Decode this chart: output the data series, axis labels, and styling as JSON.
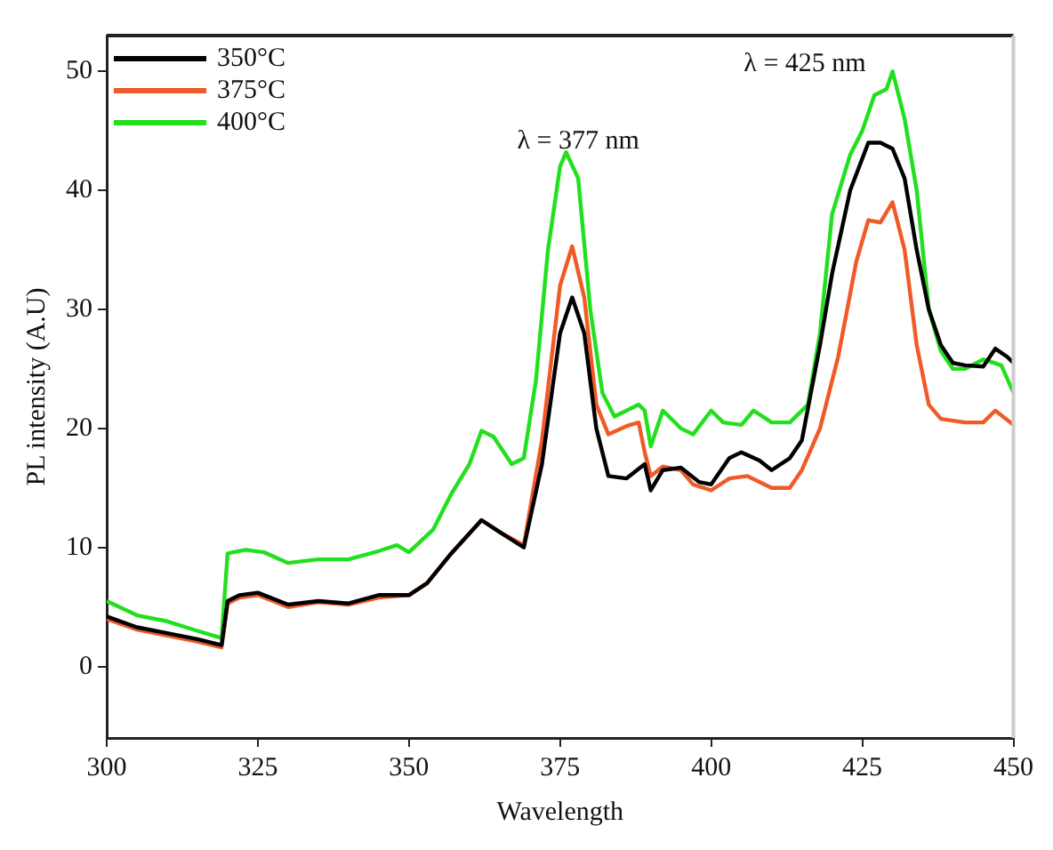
{
  "chart_data": {
    "type": "line",
    "xlabel": "Wavelength",
    "ylabel": "PL intensity (A.U)",
    "xlim": [
      300,
      450
    ],
    "xticks": [
      300,
      325,
      350,
      375,
      400,
      425,
      450
    ],
    "ylim": [
      -6,
      53
    ],
    "yticks": [
      0,
      10,
      20,
      30,
      40,
      50
    ],
    "grid": false,
    "legend": "top left",
    "marker": "none",
    "line_style": "solid",
    "annotations": [
      "λ = 377 nm",
      "λ = 425 nm"
    ],
    "series": [
      {
        "name": "350°C",
        "color": "#000000",
        "x": [
          300,
          305,
          310,
          315,
          319,
          320,
          322,
          325,
          330,
          335,
          340,
          345,
          350,
          353,
          357,
          362,
          365,
          369,
          372,
          375,
          377,
          379,
          381,
          383,
          386,
          389,
          390,
          392,
          395,
          398,
          400,
          403,
          405,
          408,
          410,
          413,
          415,
          418,
          420,
          423,
          426,
          428,
          430,
          432,
          434,
          436,
          438,
          440,
          442,
          445,
          447,
          449,
          450
        ],
        "values": [
          4.2,
          3.3,
          2.8,
          2.3,
          1.8,
          5.5,
          6.0,
          6.2,
          5.2,
          5.5,
          5.3,
          6.0,
          6.0,
          7.0,
          9.5,
          12.3,
          11.3,
          10.0,
          17,
          28,
          31,
          28,
          20,
          16,
          15.8,
          17,
          14.8,
          16.5,
          16.7,
          15.5,
          15.3,
          17.5,
          18,
          17.3,
          16.5,
          17.5,
          19,
          27,
          33,
          40,
          44,
          44,
          43.5,
          41,
          35,
          30,
          27,
          25.5,
          25.3,
          25.2,
          26.7,
          26,
          25.5
        ]
      },
      {
        "name": "375°C",
        "color": "#f05a28",
        "x": [
          300,
          305,
          310,
          315,
          319,
          320,
          322,
          325,
          330,
          335,
          340,
          345,
          350,
          353,
          357,
          362,
          365,
          369,
          372,
          375,
          377,
          379,
          381,
          383,
          386,
          388,
          389,
          390,
          392,
          395,
          397,
          400,
          403,
          406,
          410,
          413,
          415,
          418,
          421,
          424,
          426,
          428,
          430,
          432,
          434,
          436,
          438,
          442,
          445,
          447,
          450
        ],
        "values": [
          4.0,
          3.1,
          2.6,
          2.1,
          1.6,
          5.3,
          5.8,
          6.0,
          5.0,
          5.4,
          5.2,
          5.8,
          6.0,
          7.0,
          9.5,
          12.3,
          11.3,
          10.2,
          19,
          32,
          35.3,
          31,
          22,
          19.5,
          20.2,
          20.5,
          18,
          16,
          16.8,
          16.5,
          15.3,
          14.8,
          15.8,
          16,
          15,
          15,
          16.5,
          20,
          26,
          34,
          37.5,
          37.3,
          39,
          35,
          27,
          22,
          20.8,
          20.5,
          20.5,
          21.5,
          20.3
        ]
      },
      {
        "name": "400°C",
        "color": "#22e01e",
        "x": [
          300,
          305,
          310,
          315,
          319,
          320,
          323,
          326,
          330,
          335,
          340,
          345,
          348,
          350,
          354,
          357,
          360,
          362,
          364,
          367,
          369,
          371,
          373,
          375,
          376,
          378,
          380,
          382,
          384,
          386,
          388,
          389,
          390,
          392,
          395,
          397,
          400,
          402,
          405,
          407,
          410,
          413,
          416,
          418,
          420,
          423,
          425,
          427,
          429,
          430,
          432,
          434,
          436,
          438,
          440,
          442,
          445,
          448,
          450
        ],
        "values": [
          5.5,
          4.3,
          3.8,
          3.0,
          2.4,
          9.5,
          9.8,
          9.6,
          8.7,
          9.0,
          9.0,
          9.7,
          10.2,
          9.6,
          11.5,
          14.5,
          17,
          19.8,
          19.3,
          17,
          17.5,
          24,
          35,
          42,
          43.2,
          41,
          30,
          23,
          21,
          21.5,
          22,
          21.5,
          18.5,
          21.5,
          20,
          19.5,
          21.5,
          20.5,
          20.3,
          21.5,
          20.5,
          20.5,
          22,
          28,
          38,
          43,
          45,
          48,
          48.5,
          50,
          46,
          40,
          30,
          26.5,
          25,
          25,
          25.8,
          25.3,
          23
        ]
      }
    ]
  }
}
